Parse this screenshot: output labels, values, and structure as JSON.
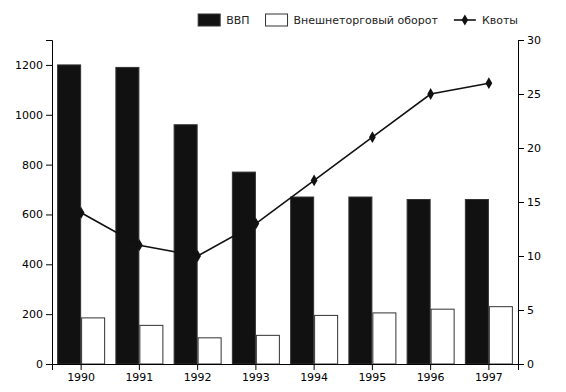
{
  "chart_data": {
    "type": "bar",
    "categories": [
      "1990",
      "1991",
      "1992",
      "1993",
      "1994",
      "1995",
      "1996",
      "1997"
    ],
    "series": [
      {
        "name": "ВВП",
        "color": "#111111",
        "values": [
          1200,
          1190,
          960,
          770,
          670,
          670,
          660,
          660
        ]
      },
      {
        "name": "Внешнеторговый оборот",
        "color": "#ffffff",
        "values": [
          185,
          155,
          105,
          115,
          195,
          205,
          220,
          230
        ]
      },
      {
        "name": "Квоты",
        "type": "line",
        "axis": "y2",
        "color": "#111111",
        "marker": "diamond",
        "values": [
          14,
          11,
          10,
          13,
          17,
          21,
          25,
          26
        ]
      }
    ],
    "ylim": [
      0,
      1300
    ],
    "yticks": [
      0,
      200,
      400,
      600,
      800,
      1000,
      1200
    ],
    "y2lim": [
      0,
      30
    ],
    "y2ticks": [
      0,
      5,
      10,
      15,
      20,
      25,
      30
    ],
    "grid": false,
    "legend": "upper right"
  }
}
